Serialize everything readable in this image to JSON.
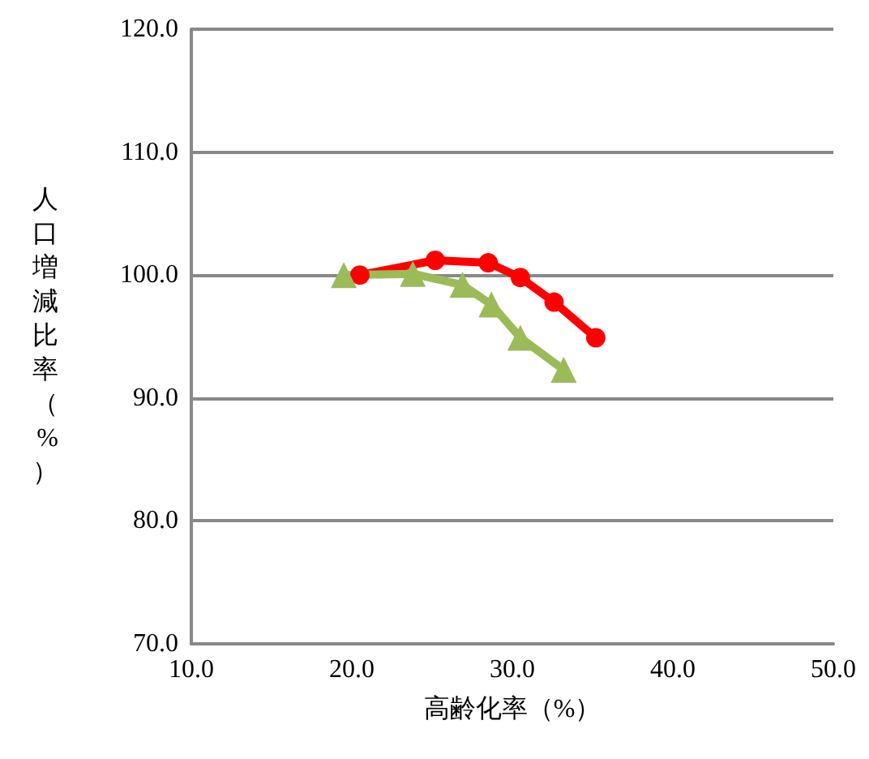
{
  "chart_data": {
    "type": "line",
    "xlabel": "高齢化率（%）",
    "ylabel": "人口増減比率（%）",
    "xlim": [
      10,
      50
    ],
    "xticks": [
      {
        "value": 10,
        "label": "10.0"
      },
      {
        "value": 20,
        "label": "20.0"
      },
      {
        "value": 30,
        "label": "30.0"
      },
      {
        "value": 40,
        "label": "40.0"
      },
      {
        "value": 50,
        "label": "50.0"
      }
    ],
    "ylim": [
      70,
      120
    ],
    "yticks": [
      {
        "value": 70,
        "label": "70.0"
      },
      {
        "value": 80,
        "label": "80.0"
      },
      {
        "value": 90,
        "label": "90.0"
      },
      {
        "value": 100,
        "label": "100.0"
      },
      {
        "value": 110,
        "label": "110.0"
      },
      {
        "value": 120,
        "label": "120.0"
      }
    ],
    "grid": "y",
    "series": [
      {
        "color": "#ff0000",
        "marker": "circle",
        "x": [
          20.5,
          25.2,
          28.5,
          30.5,
          32.6,
          35.2
        ],
        "values": [
          100.0,
          101.2,
          101.0,
          99.8,
          97.8,
          94.9
        ]
      },
      {
        "color": "#9bbb59",
        "marker": "triangle",
        "x": [
          19.5,
          23.8,
          26.9,
          28.7,
          30.5,
          33.2
        ],
        "values": [
          100.0,
          100.1,
          99.2,
          97.6,
          94.9,
          92.3
        ]
      }
    ]
  }
}
